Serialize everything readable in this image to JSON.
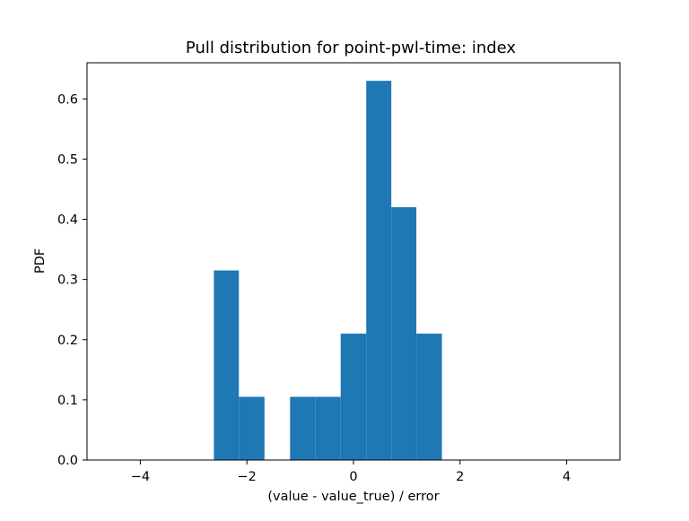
{
  "chart_data": {
    "type": "bar",
    "title": "Pull distribution for point-pwl-time: index",
    "xlabel": "(value - value_true) / error",
    "ylabel": "PDF",
    "xlim": [
      -5.0,
      5.0
    ],
    "ylim": [
      0.0,
      0.66
    ],
    "xticks": [
      -4,
      -2,
      0,
      2,
      4
    ],
    "xtick_labels": [
      "−4",
      "−2",
      "0",
      "2",
      "4"
    ],
    "yticks": [
      0.0,
      0.1,
      0.2,
      0.3,
      0.4,
      0.5,
      0.6
    ],
    "ytick_labels": [
      "0.0",
      "0.1",
      "0.2",
      "0.3",
      "0.4",
      "0.5",
      "0.6"
    ],
    "bar_color": "#1f77b4",
    "grid": false,
    "bins": [
      {
        "x0": -2.62,
        "x1": -2.15,
        "value": 0.315
      },
      {
        "x0": -2.15,
        "x1": -1.67,
        "value": 0.105
      },
      {
        "x0": -1.67,
        "x1": -1.19,
        "value": 0.0
      },
      {
        "x0": -1.19,
        "x1": -0.72,
        "value": 0.105
      },
      {
        "x0": -0.72,
        "x1": -0.24,
        "value": 0.105
      },
      {
        "x0": -0.24,
        "x1": 0.24,
        "value": 0.21
      },
      {
        "x0": 0.24,
        "x1": 0.71,
        "value": 0.63
      },
      {
        "x0": 0.71,
        "x1": 1.18,
        "value": 0.42
      },
      {
        "x0": 1.18,
        "x1": 1.66,
        "value": 0.21
      }
    ]
  }
}
